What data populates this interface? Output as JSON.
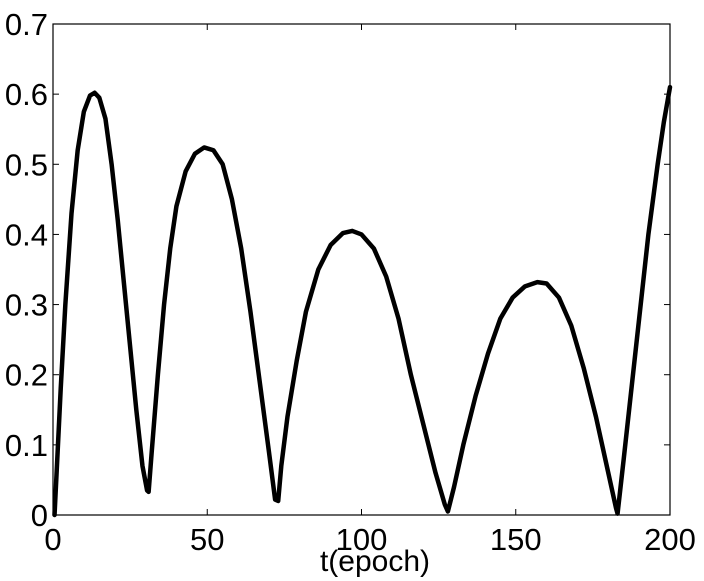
{
  "chart_data": {
    "type": "line",
    "title": "",
    "xlabel": "t(epoch)",
    "ylabel": "",
    "xlim": [
      0,
      200
    ],
    "ylim": [
      0,
      0.7
    ],
    "xticks": [
      0,
      50,
      100,
      150,
      200
    ],
    "xtick_labels": [
      "0",
      "50",
      "100",
      "150",
      "200"
    ],
    "yticks": [
      0,
      0.1,
      0.2,
      0.3,
      0.4,
      0.5,
      0.6,
      0.7
    ],
    "ytick_labels": [
      "0",
      "0.1",
      "0.2",
      "0.3",
      "0.4",
      "0.5",
      "0.6",
      "0.7"
    ],
    "grid": false,
    "legend": "none",
    "line_color": "#000000",
    "series": [
      {
        "points": [
          [
            0.5,
            0
          ],
          [
            1.5,
            0.09
          ],
          [
            2.5,
            0.18
          ],
          [
            4,
            0.3
          ],
          [
            6,
            0.43
          ],
          [
            8,
            0.52
          ],
          [
            10,
            0.575
          ],
          [
            12,
            0.598
          ],
          [
            13.5,
            0.602
          ],
          [
            15,
            0.595
          ],
          [
            17,
            0.565
          ],
          [
            19,
            0.5
          ],
          [
            21,
            0.42
          ],
          [
            23,
            0.33
          ],
          [
            25,
            0.24
          ],
          [
            27,
            0.15
          ],
          [
            29,
            0.07
          ],
          [
            30.5,
            0.035
          ],
          [
            31,
            0.033
          ],
          [
            32,
            0.09
          ],
          [
            34,
            0.2
          ],
          [
            36,
            0.3
          ],
          [
            38,
            0.38
          ],
          [
            40,
            0.44
          ],
          [
            43,
            0.49
          ],
          [
            46,
            0.515
          ],
          [
            49,
            0.524
          ],
          [
            52,
            0.52
          ],
          [
            55,
            0.5
          ],
          [
            58,
            0.45
          ],
          [
            61,
            0.38
          ],
          [
            64,
            0.29
          ],
          [
            67,
            0.19
          ],
          [
            70,
            0.09
          ],
          [
            72,
            0.022
          ],
          [
            73,
            0.02
          ],
          [
            74,
            0.07
          ],
          [
            76,
            0.14
          ],
          [
            79,
            0.22
          ],
          [
            82,
            0.29
          ],
          [
            86,
            0.35
          ],
          [
            90,
            0.385
          ],
          [
            94,
            0.402
          ],
          [
            97,
            0.405
          ],
          [
            100,
            0.4
          ],
          [
            104,
            0.38
          ],
          [
            108,
            0.34
          ],
          [
            112,
            0.28
          ],
          [
            116,
            0.2
          ],
          [
            120,
            0.13
          ],
          [
            124,
            0.06
          ],
          [
            127,
            0.015
          ],
          [
            128,
            0.005
          ],
          [
            130,
            0.04
          ],
          [
            133,
            0.1
          ],
          [
            137,
            0.17
          ],
          [
            141,
            0.23
          ],
          [
            145,
            0.28
          ],
          [
            149,
            0.31
          ],
          [
            153,
            0.326
          ],
          [
            157,
            0.332
          ],
          [
            160,
            0.33
          ],
          [
            164,
            0.31
          ],
          [
            168,
            0.27
          ],
          [
            172,
            0.21
          ],
          [
            176,
            0.14
          ],
          [
            179,
            0.08
          ],
          [
            181,
            0.04
          ],
          [
            182.5,
            0.01
          ],
          [
            183,
            0.002
          ],
          [
            185,
            0.08
          ],
          [
            187,
            0.16
          ],
          [
            190,
            0.28
          ],
          [
            193,
            0.4
          ],
          [
            196,
            0.5
          ],
          [
            198,
            0.56
          ],
          [
            200,
            0.61
          ]
        ]
      }
    ]
  }
}
